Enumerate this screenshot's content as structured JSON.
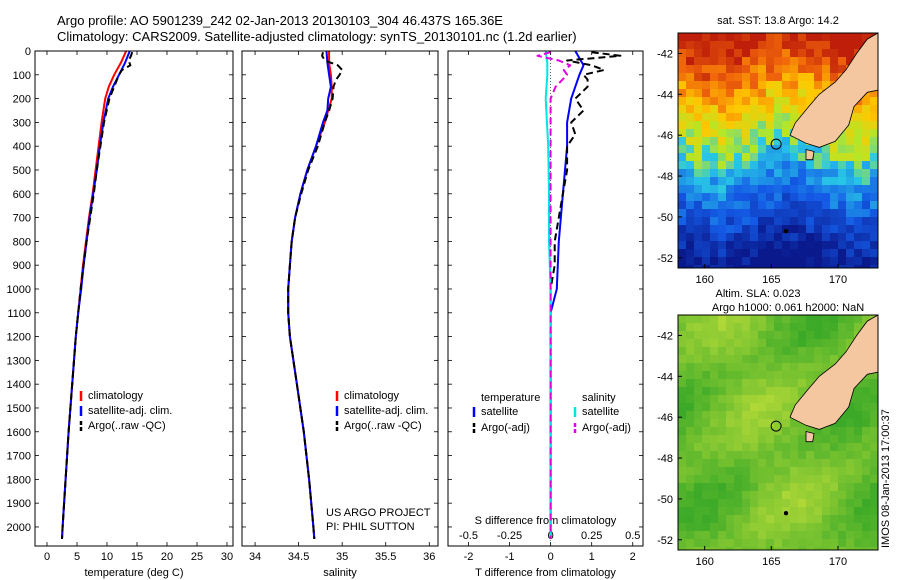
{
  "header": {
    "line1": "Argo profile: AO 5901239_242 02-Jan-2013 20130103_304 46.437S 165.36E",
    "line2": "Climatology: CARS2009. Satellite-adjusted climatology: synTS_20130101.nc (1.2d earlier)"
  },
  "side_text": "IMOS 08-Jan-2013 17:00:37",
  "colors": {
    "climatology": "#ff0000",
    "satellite": "#0000ff",
    "argo": "#000000",
    "sal_satellite": "#00e5e5",
    "sal_argo": "#e000e0",
    "land": "#f5c7a0"
  },
  "chart_data": [
    {
      "type": "line",
      "xlabel": "temperature (deg C)",
      "ylabel": "",
      "xlim": [
        -2,
        31
      ],
      "ylim": [
        2080,
        0
      ],
      "xticks": [
        0,
        5,
        10,
        15,
        20,
        25,
        30
      ],
      "yticks": [
        0,
        100,
        200,
        300,
        400,
        500,
        600,
        700,
        800,
        900,
        1000,
        1100,
        1200,
        1300,
        1400,
        1500,
        1600,
        1700,
        1800,
        1900,
        2000
      ],
      "legend": [
        "climatology",
        "satellite-adj. clim.",
        "Argo(..raw -QC)"
      ],
      "series": [
        {
          "name": "climatology",
          "depth": [
            0,
            50,
            100,
            150,
            200,
            300,
            400,
            500,
            600,
            700,
            800,
            900,
            1000,
            1100,
            1200,
            1400,
            1600,
            1800,
            2000,
            2050
          ],
          "values": [
            13.2,
            12.3,
            11.2,
            10.3,
            9.7,
            9.1,
            8.6,
            8.1,
            7.6,
            7.0,
            6.5,
            6.0,
            5.6,
            5.2,
            4.8,
            4.2,
            3.6,
            3.1,
            2.6,
            2.5
          ]
        },
        {
          "name": "satellite-adj. clim.",
          "depth": [
            0,
            50,
            100,
            150,
            200,
            300,
            400,
            500,
            600,
            700,
            800,
            900,
            1000,
            1100,
            1200,
            1400,
            1600,
            1800,
            2000,
            2050
          ],
          "values": [
            13.8,
            13.0,
            12.0,
            11.0,
            10.2,
            9.4,
            8.8,
            8.3,
            7.7,
            7.1,
            6.6,
            6.1,
            5.7,
            5.2,
            4.8,
            4.2,
            3.6,
            3.1,
            2.6,
            2.5
          ]
        },
        {
          "name": "Argo(..raw -QC)",
          "depth": [
            5,
            20,
            40,
            60,
            80,
            100,
            150,
            200,
            300,
            400,
            500,
            600,
            700,
            800,
            900,
            1000,
            1100,
            1200,
            1400,
            1600,
            1800,
            2000,
            2050
          ],
          "values": [
            14.2,
            14.0,
            13.6,
            13.9,
            12.5,
            12.0,
            11.2,
            10.4,
            9.5,
            8.9,
            8.3,
            7.8,
            7.2,
            6.6,
            6.1,
            5.6,
            5.2,
            4.8,
            4.2,
            3.6,
            3.1,
            2.6,
            2.5
          ]
        }
      ]
    },
    {
      "type": "line",
      "xlabel": "salinity",
      "ylabel": "",
      "xlim": [
        33.85,
        36.1
      ],
      "ylim": [
        2080,
        0
      ],
      "xticks": [
        34,
        34.5,
        35,
        35.5,
        36
      ],
      "legend": [
        "climatology",
        "satellite-adj. clim.",
        "Argo(..raw -QC)"
      ],
      "annotations": [
        "US ARGO PROJECT",
        "PI: PHIL SUTTON"
      ],
      "series": [
        {
          "name": "climatology",
          "depth": [
            0,
            50,
            100,
            150,
            200,
            250,
            300,
            400,
            500,
            600,
            700,
            800,
            900,
            1000,
            1100,
            1200,
            1400,
            1600,
            1800,
            2000,
            2050
          ],
          "values": [
            34.85,
            34.85,
            34.87,
            34.88,
            34.88,
            34.84,
            34.8,
            34.7,
            34.6,
            34.52,
            34.46,
            34.42,
            34.4,
            34.38,
            34.38,
            34.4,
            34.48,
            34.56,
            34.62,
            34.67,
            34.68
          ]
        },
        {
          "name": "satellite-adj. clim.",
          "depth": [
            0,
            50,
            100,
            150,
            200,
            250,
            300,
            400,
            500,
            600,
            700,
            800,
            900,
            1000,
            1100,
            1200,
            1400,
            1600,
            1800,
            2000,
            2050
          ],
          "values": [
            34.82,
            34.83,
            34.85,
            34.87,
            34.84,
            34.83,
            34.78,
            34.7,
            34.6,
            34.52,
            34.46,
            34.42,
            34.4,
            34.38,
            34.38,
            34.4,
            34.48,
            34.56,
            34.62,
            34.67,
            34.68
          ]
        },
        {
          "name": "Argo(..raw -QC)",
          "depth": [
            5,
            20,
            40,
            60,
            80,
            100,
            120,
            150,
            200,
            250,
            300,
            400,
            500,
            600,
            700,
            800,
            900,
            1000,
            1100,
            1200,
            1400,
            1600,
            1800,
            2000,
            2050
          ],
          "values": [
            34.78,
            34.77,
            34.8,
            34.95,
            35.0,
            34.97,
            34.93,
            34.9,
            34.89,
            34.85,
            34.8,
            34.72,
            34.61,
            34.53,
            34.46,
            34.42,
            34.4,
            34.38,
            34.38,
            34.4,
            34.48,
            34.56,
            34.62,
            34.67,
            34.68
          ]
        }
      ]
    },
    {
      "type": "line",
      "xlabel": "T difference from climatology",
      "x2label": "S difference from climatology",
      "ylabel": "",
      "xlim": [
        -2.5,
        2.25
      ],
      "x2lim": [
        -0.625,
        0.5625
      ],
      "ylim": [
        2080,
        0
      ],
      "xticks": [
        -2,
        -1,
        0,
        1,
        2
      ],
      "x2ticks": [
        -0.5,
        -0.25,
        0,
        0.25,
        0.5
      ],
      "x2ticklabels": [
        "-0.5",
        "-0.25",
        "0",
        "0.25",
        "0.5"
      ],
      "legend_headers": [
        "temperature",
        "salinity"
      ],
      "legend": [
        "satellite",
        "Argo(-adj)",
        "satellite",
        "Argo(-adj)"
      ],
      "series": [
        {
          "name": "temperature satellite",
          "depth": [
            0,
            30,
            60,
            100,
            150,
            200,
            300,
            400,
            600,
            800,
            1000,
            1100,
            1200,
            1400,
            1600,
            1800,
            2050
          ],
          "values": [
            0.6,
            0.7,
            0.8,
            0.7,
            0.6,
            0.5,
            0.4,
            0.4,
            0.3,
            0.2,
            0.15,
            0.0,
            0.0,
            0.0,
            0.0,
            0.0,
            0.0
          ]
        },
        {
          "name": "temperature Argo(-adj)",
          "depth": [
            5,
            20,
            40,
            60,
            80,
            100,
            120,
            150,
            200,
            250,
            300,
            350,
            400,
            500,
            600,
            700,
            800,
            900,
            1000,
            1100,
            1200,
            1400,
            1600,
            1800,
            2050
          ],
          "values": [
            1.0,
            1.7,
            0.4,
            1.0,
            1.3,
            0.8,
            0.9,
            0.9,
            0.6,
            0.8,
            0.5,
            0.6,
            0.4,
            0.4,
            0.3,
            0.2,
            0.1,
            0.1,
            0.0,
            0.0,
            0.0,
            0.0,
            0.0,
            0.0,
            0.0
          ]
        },
        {
          "name": "salinity satellite",
          "depth": [
            0,
            50,
            100,
            200,
            400,
            600,
            800,
            1000,
            1200,
            1400,
            1600,
            1800,
            2050
          ],
          "values": [
            -0.03,
            -0.02,
            -0.02,
            -0.03,
            -0.015,
            -0.01,
            -0.01,
            0.0,
            0.0,
            0.0,
            0.0,
            0.0,
            0.0
          ]
        },
        {
          "name": "salinity Argo(-adj)",
          "depth": [
            5,
            20,
            40,
            60,
            80,
            100,
            150,
            200,
            300,
            400,
            600,
            800,
            1000,
            1100,
            1200,
            1400,
            1600,
            1800,
            2050
          ],
          "values": [
            0.0,
            -0.08,
            0.05,
            0.12,
            0.08,
            0.1,
            0.03,
            0.0,
            0.0,
            0.0,
            0.0,
            0.0,
            0.0,
            0.0,
            0.0,
            0.0,
            0.0,
            0.0,
            0.0
          ]
        }
      ]
    },
    {
      "type": "heatmap",
      "title": "sat. SST: 13.8 Argo: 14.2",
      "xlim": [
        158,
        173
      ],
      "ylim": [
        -52.5,
        -41
      ],
      "xticks": [
        160,
        165,
        170
      ],
      "yticks": [
        -42,
        -44,
        -46,
        -48,
        -50,
        -52
      ],
      "profile_location": [
        165.36,
        -46.437
      ]
    },
    {
      "type": "heatmap",
      "title": "Altim. SLA: 0.023",
      "subtitle": "Argo h1000: 0.061 h2000: NaN",
      "xlim": [
        158,
        173
      ],
      "ylim": [
        -52.5,
        -41
      ],
      "xticks": [
        160,
        165,
        170
      ],
      "yticks": [
        -42,
        -44,
        -46,
        -48,
        -50,
        -52
      ],
      "profile_location": [
        165.36,
        -46.437
      ]
    }
  ]
}
